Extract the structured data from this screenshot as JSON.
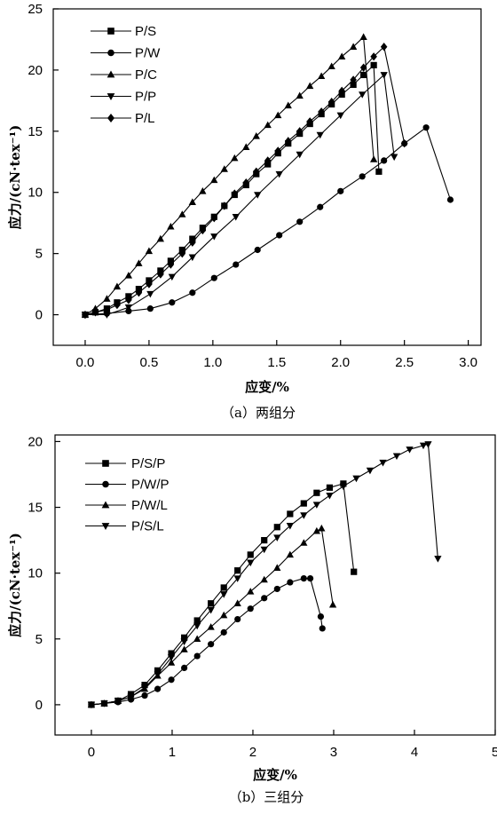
{
  "chart_data": [
    {
      "type": "line",
      "xlabel": "应变/%",
      "ylabel": "应力/(cN·tex⁻¹)",
      "caption": "（a）两组分",
      "xlim": [
        -0.25,
        3.1
      ],
      "ylim": [
        -2.5,
        25
      ],
      "xticks": [
        "0.0",
        "0.5",
        "1.0",
        "1.5",
        "2.0",
        "2.5",
        "3.0"
      ],
      "xtick_values": [
        0,
        0.5,
        1.0,
        1.5,
        2.0,
        2.5,
        3.0
      ],
      "yticks": [
        "0",
        "5",
        "10",
        "15",
        "20",
        "25"
      ],
      "ytick_values": [
        0,
        5,
        10,
        15,
        20,
        25
      ],
      "legend_position": "top-left",
      "series": [
        {
          "name": "P/S",
          "marker": "square",
          "x": [
            0,
            0.08,
            0.17,
            0.25,
            0.34,
            0.42,
            0.5,
            0.59,
            0.67,
            0.76,
            0.84,
            0.92,
            1.01,
            1.09,
            1.17,
            1.26,
            1.34,
            1.43,
            1.51,
            1.59,
            1.68,
            1.76,
            1.85,
            1.93,
            2.01,
            2.1,
            2.18,
            2.26,
            2.3
          ],
          "y": [
            0,
            0.2,
            0.5,
            1.0,
            1.5,
            2.1,
            2.8,
            3.6,
            4.4,
            5.3,
            6.2,
            7.1,
            8.0,
            8.9,
            9.8,
            10.6,
            11.5,
            12.3,
            13.2,
            14.0,
            14.8,
            15.6,
            16.4,
            17.2,
            18.0,
            18.8,
            19.6,
            20.4,
            11.7
          ]
        },
        {
          "name": "P/W",
          "marker": "circle",
          "x": [
            0,
            0.17,
            0.34,
            0.51,
            0.68,
            0.84,
            1.01,
            1.18,
            1.35,
            1.52,
            1.68,
            1.84,
            2.0,
            2.17,
            2.34,
            2.5,
            2.67,
            2.86
          ],
          "y": [
            0,
            0.1,
            0.3,
            0.5,
            1.0,
            1.8,
            3.0,
            4.1,
            5.3,
            6.5,
            7.6,
            8.8,
            10.1,
            11.3,
            12.6,
            14.0,
            15.3,
            9.4
          ]
        },
        {
          "name": "P/C",
          "marker": "triangle-up",
          "x": [
            0,
            0.08,
            0.17,
            0.25,
            0.34,
            0.42,
            0.5,
            0.59,
            0.67,
            0.76,
            0.84,
            0.92,
            1.01,
            1.09,
            1.17,
            1.26,
            1.34,
            1.43,
            1.51,
            1.59,
            1.68,
            1.76,
            1.85,
            1.93,
            2.01,
            2.1,
            2.18,
            2.26
          ],
          "y": [
            0,
            0.5,
            1.3,
            2.3,
            3.2,
            4.2,
            5.2,
            6.2,
            7.2,
            8.2,
            9.2,
            10.1,
            11.0,
            11.9,
            12.8,
            13.7,
            14.6,
            15.5,
            16.3,
            17.1,
            17.9,
            18.7,
            19.5,
            20.3,
            21.1,
            21.9,
            22.7,
            12.7
          ]
        },
        {
          "name": "P/P",
          "marker": "triangle-down",
          "x": [
            0,
            0.17,
            0.34,
            0.51,
            0.68,
            0.84,
            1.01,
            1.18,
            1.35,
            1.52,
            1.68,
            1.84,
            2.0,
            2.17,
            2.34,
            2.42
          ],
          "y": [
            0,
            0,
            0.6,
            1.7,
            3.1,
            4.7,
            6.4,
            8.0,
            9.8,
            11.5,
            13.1,
            14.7,
            16.3,
            18.0,
            19.6,
            12.9
          ]
        },
        {
          "name": "P/L",
          "marker": "diamond",
          "x": [
            0,
            0.08,
            0.17,
            0.25,
            0.34,
            0.42,
            0.5,
            0.59,
            0.67,
            0.76,
            0.84,
            0.92,
            1.01,
            1.09,
            1.17,
            1.26,
            1.34,
            1.43,
            1.51,
            1.59,
            1.68,
            1.76,
            1.85,
            1.93,
            2.01,
            2.1,
            2.18,
            2.26,
            2.34,
            2.5
          ],
          "y": [
            0,
            0.2,
            0.4,
            0.8,
            1.2,
            1.8,
            2.5,
            3.3,
            4.1,
            5.0,
            5.9,
            6.9,
            7.9,
            8.9,
            9.9,
            10.8,
            11.7,
            12.6,
            13.4,
            14.2,
            15.0,
            15.8,
            16.6,
            17.4,
            18.3,
            19.2,
            20.2,
            21.1,
            21.9,
            14.0
          ]
        }
      ]
    },
    {
      "type": "line",
      "xlabel": "应变/%",
      "ylabel": "应力/(cN·tex⁻¹)",
      "caption": "（b）三组分",
      "xlim": [
        -0.45,
        5.0
      ],
      "ylim": [
        -2.3,
        20.5
      ],
      "xticks": [
        "0",
        "1",
        "2",
        "3",
        "4",
        "5"
      ],
      "xtick_values": [
        0,
        1,
        2,
        3,
        4,
        5
      ],
      "yticks": [
        "0",
        "5",
        "10",
        "15",
        "20"
      ],
      "ytick_values": [
        0,
        5,
        10,
        15,
        20
      ],
      "legend_position": "top-left",
      "series": [
        {
          "name": "P/S/P",
          "marker": "square",
          "x": [
            0,
            0.16,
            0.33,
            0.49,
            0.66,
            0.82,
            0.99,
            1.15,
            1.31,
            1.48,
            1.64,
            1.81,
            1.97,
            2.14,
            2.3,
            2.46,
            2.63,
            2.79,
            2.95,
            3.12,
            3.25
          ],
          "y": [
            0,
            0.1,
            0.3,
            0.8,
            1.5,
            2.6,
            3.9,
            5.1,
            6.4,
            7.7,
            8.9,
            10.2,
            11.4,
            12.5,
            13.5,
            14.5,
            15.3,
            16.1,
            16.5,
            16.8,
            10.1
          ]
        },
        {
          "name": "P/W/P",
          "marker": "circle",
          "x": [
            0,
            0.16,
            0.33,
            0.49,
            0.66,
            0.82,
            0.99,
            1.15,
            1.31,
            1.48,
            1.64,
            1.81,
            1.97,
            2.14,
            2.3,
            2.46,
            2.63,
            2.71,
            2.84,
            2.86
          ],
          "y": [
            0,
            0.1,
            0.2,
            0.4,
            0.7,
            1.2,
            1.9,
            2.8,
            3.7,
            4.6,
            5.5,
            6.5,
            7.3,
            8.1,
            8.8,
            9.3,
            9.6,
            9.6,
            6.7,
            5.8
          ]
        },
        {
          "name": "P/W/L",
          "marker": "triangle-up",
          "x": [
            0,
            0.16,
            0.33,
            0.49,
            0.66,
            0.82,
            0.99,
            1.15,
            1.31,
            1.48,
            1.64,
            1.81,
            1.97,
            2.14,
            2.3,
            2.46,
            2.63,
            2.79,
            2.85,
            2.99
          ],
          "y": [
            0,
            0.1,
            0.3,
            0.6,
            1.2,
            2.2,
            3.2,
            4.2,
            5.0,
            5.9,
            6.8,
            7.7,
            8.6,
            9.5,
            10.4,
            11.4,
            12.3,
            13.2,
            13.4,
            7.6
          ]
        },
        {
          "name": "P/S/L",
          "marker": "triangle-down",
          "x": [
            0,
            0.16,
            0.33,
            0.49,
            0.66,
            0.82,
            0.99,
            1.15,
            1.31,
            1.48,
            1.64,
            1.81,
            1.97,
            2.14,
            2.3,
            2.46,
            2.63,
            2.79,
            2.95,
            3.12,
            3.28,
            3.45,
            3.61,
            3.78,
            3.94,
            4.11,
            4.17,
            4.29
          ],
          "y": [
            0,
            0.1,
            0.3,
            0.6,
            1.3,
            2.3,
            3.6,
            4.8,
            6.0,
            7.2,
            8.4,
            9.6,
            10.8,
            11.8,
            12.7,
            13.6,
            14.4,
            15.2,
            15.9,
            16.6,
            17.2,
            17.8,
            18.4,
            18.9,
            19.4,
            19.7,
            19.8,
            11.1
          ]
        }
      ]
    }
  ]
}
